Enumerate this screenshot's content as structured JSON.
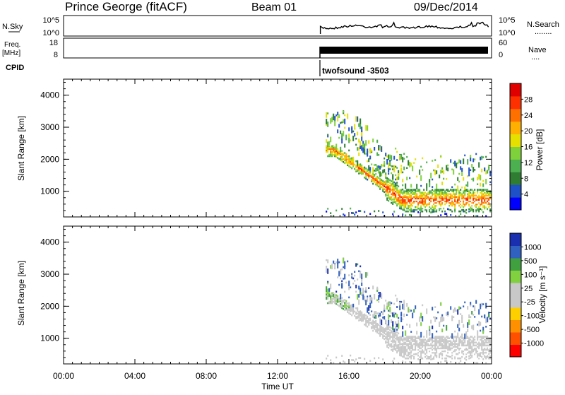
{
  "header": {
    "station": "Prince George (fitACF)",
    "beam": "Beam 01",
    "date": "09/Dec/2014"
  },
  "summary_panels": {
    "nsky": {
      "label": "N.Sky",
      "ticks": [
        "10^5",
        "10^0"
      ],
      "right_ticks": [
        "10^5",
        "10^0"
      ],
      "right_label": "N.Search",
      "right_dots": "........"
    },
    "freq": {
      "label_line1": "Freq.",
      "label_line2": "[MHz]",
      "ticks": [
        "18",
        "8"
      ],
      "right_ticks": [
        "60",
        "0"
      ],
      "right_label": "Nave",
      "right_dots": "...."
    },
    "cpid": {
      "label": "CPID",
      "program": "twofsound -3503"
    }
  },
  "x_axis": {
    "label": "Time UT",
    "ticks": [
      "00:00",
      "04:00",
      "08:00",
      "12:00",
      "16:00",
      "20:00",
      "00:00"
    ]
  },
  "colors": {
    "power": [
      "#0000ff",
      "#1e50c8",
      "#2e7d32",
      "#4caf50",
      "#7fd13b",
      "#e6e000",
      "#ffb000",
      "#ff7000",
      "#ff3000",
      "#e00000"
    ],
    "velocity": [
      "#ff0000",
      "#ff5000",
      "#ff9000",
      "#ffd000",
      "#c8c8c8",
      "#c8c8c8",
      "#80d040",
      "#40a040",
      "#3060c0",
      "#1a2fb0"
    ],
    "ground_scatter": "#c8c8c8"
  },
  "chart_data": [
    {
      "type": "heatmap",
      "name": "power",
      "title": "",
      "xlabel": "",
      "ylabel": "Slant Range [km]",
      "ylim": [
        200,
        4500
      ],
      "y_ticks": [
        "1000",
        "2000",
        "3000",
        "4000"
      ],
      "colorbar": {
        "label": "Power [dB]",
        "range": [
          0,
          32
        ],
        "tick_labels": [
          "28",
          "24",
          "20",
          "16",
          "12",
          "8",
          "4"
        ]
      },
      "grid": false,
      "data_start_hour": 14.4,
      "data_end_hour": 24
    },
    {
      "type": "heatmap",
      "name": "velocity",
      "title": "",
      "xlabel": "Time UT",
      "ylabel": "Slant Range [km]",
      "ylim": [
        200,
        4500
      ],
      "y_ticks": [
        "1000",
        "2000",
        "3000",
        "4000"
      ],
      "colorbar": {
        "label": "Velocity [m s⁻¹]",
        "tick_labels": [
          "1000",
          "500",
          "100",
          "25",
          "-25",
          "-100",
          "-500",
          "-1000"
        ]
      },
      "grid": false,
      "data_start_hour": 14.4,
      "data_end_hour": 24
    }
  ]
}
